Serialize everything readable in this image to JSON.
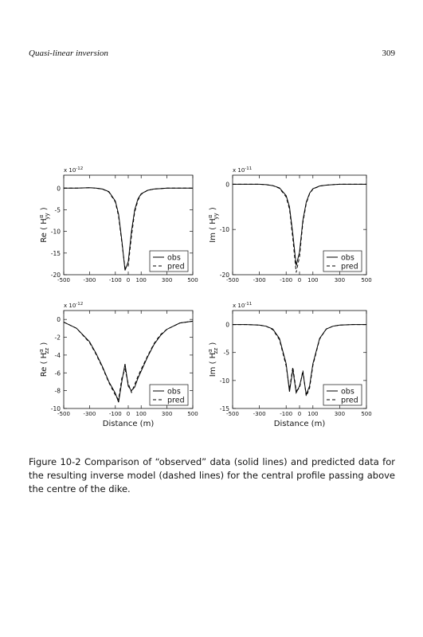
{
  "header": {
    "title": "Quasi-linear inversion",
    "page": "309"
  },
  "chart_data": [
    {
      "type": "line",
      "multiplier": {
        "base": "x 10",
        "exponent": "-12"
      },
      "ylabel": [
        "Re ( H",
        "α",
        "yy",
        " )"
      ],
      "x": [
        -500,
        -400,
        -300,
        -250,
        -200,
        -150,
        -100,
        -75,
        -50,
        -25,
        0,
        25,
        50,
        75,
        100,
        150,
        200,
        250,
        300,
        400,
        500
      ],
      "series": [
        {
          "name": "obs",
          "color": "#000000",
          "dash": false,
          "values": [
            0,
            0,
            0.1,
            0,
            -0.2,
            -0.8,
            -3,
            -6,
            -12,
            -19,
            -17,
            -10,
            -5,
            -2.5,
            -1.3,
            -0.5,
            -0.2,
            -0.1,
            0,
            0,
            0
          ]
        },
        {
          "name": "pred",
          "color": "#000000",
          "dash": true,
          "values": [
            0,
            0,
            0.1,
            0,
            -0.2,
            -0.9,
            -3.2,
            -6.5,
            -12.5,
            -18.5,
            -18,
            -11,
            -5.5,
            -2.8,
            -1.4,
            -0.5,
            -0.2,
            -0.1,
            0,
            0,
            0
          ]
        }
      ],
      "xlim": [
        -500,
        500
      ],
      "xticks": [
        -500,
        -300,
        -100,
        0,
        100,
        300,
        500
      ],
      "ylim": [
        -20,
        3
      ],
      "yticks": [
        0,
        -5,
        -10,
        -15,
        -20
      ],
      "legend": "lower right"
    },
    {
      "type": "line",
      "multiplier": {
        "base": "x 10",
        "exponent": "-11"
      },
      "ylabel": [
        "Im ( H",
        "α",
        "yy",
        " )"
      ],
      "x": [
        -500,
        -400,
        -300,
        -250,
        -200,
        -150,
        -100,
        -75,
        -50,
        -25,
        0,
        25,
        50,
        75,
        100,
        150,
        200,
        250,
        300,
        400,
        500
      ],
      "series": [
        {
          "name": "obs",
          "color": "#000000",
          "dash": false,
          "values": [
            0,
            0,
            0,
            -0.1,
            -0.3,
            -0.8,
            -2.5,
            -5,
            -11,
            -18,
            -15,
            -8,
            -4,
            -2,
            -1,
            -0.4,
            -0.2,
            -0.1,
            0,
            0,
            0
          ]
        },
        {
          "name": "pred",
          "color": "#000000",
          "dash": true,
          "values": [
            0,
            0,
            0,
            -0.1,
            -0.3,
            -0.9,
            -2.8,
            -5.5,
            -12,
            -19.5,
            -16,
            -8.5,
            -4.3,
            -2.1,
            -1.1,
            -0.4,
            -0.2,
            -0.1,
            0,
            0,
            0
          ]
        }
      ],
      "xlim": [
        -500,
        500
      ],
      "xticks": [
        -500,
        -300,
        -100,
        0,
        100,
        300,
        500
      ],
      "ylim": [
        -20,
        2
      ],
      "yticks": [
        0,
        -10,
        -20
      ],
      "legend": "lower right"
    },
    {
      "type": "line",
      "multiplier": {
        "base": "x 10",
        "exponent": "-12"
      },
      "ylabel": [
        "Re ( H",
        "α",
        "zz",
        " )"
      ],
      "xlabel": "Distance (m)",
      "x": [
        -500,
        -400,
        -300,
        -250,
        -200,
        -150,
        -100,
        -75,
        -50,
        -25,
        0,
        25,
        50,
        75,
        100,
        150,
        200,
        250,
        300,
        400,
        500
      ],
      "series": [
        {
          "name": "obs",
          "color": "#000000",
          "dash": false,
          "values": [
            -0.3,
            -1,
            -2.5,
            -3.8,
            -5.3,
            -7,
            -8.3,
            -9.3,
            -7,
            -5,
            -7.5,
            -8,
            -7.6,
            -6.6,
            -5.8,
            -4.2,
            -2.8,
            -1.8,
            -1.1,
            -0.4,
            -0.2
          ]
        },
        {
          "name": "pred",
          "color": "#000000",
          "dash": true,
          "values": [
            -0.3,
            -1,
            -2.6,
            -3.9,
            -5.4,
            -7.1,
            -8.5,
            -9,
            -6.6,
            -5.6,
            -7.2,
            -8.2,
            -7.3,
            -6.4,
            -5.6,
            -4.1,
            -2.7,
            -1.7,
            -1.1,
            -0.4,
            -0.2
          ]
        }
      ],
      "xlim": [
        -500,
        500
      ],
      "xticks": [
        -500,
        -300,
        -100,
        0,
        100,
        300,
        500
      ],
      "ylim": [
        -10,
        1
      ],
      "yticks": [
        0,
        -2,
        -4,
        -6,
        -8,
        -10
      ],
      "legend": "lower right"
    },
    {
      "type": "line",
      "multiplier": {
        "base": "x 10",
        "exponent": "-11"
      },
      "ylabel": [
        "Im ( H",
        "α",
        "zz",
        " )"
      ],
      "xlabel": "Distance (m)",
      "x": [
        -500,
        -400,
        -300,
        -250,
        -200,
        -150,
        -100,
        -75,
        -50,
        -25,
        0,
        25,
        50,
        75,
        100,
        150,
        200,
        250,
        300,
        400,
        500
      ],
      "series": [
        {
          "name": "obs",
          "color": "#000000",
          "dash": false,
          "values": [
            0,
            0,
            -0.1,
            -0.3,
            -0.8,
            -2.5,
            -7,
            -12,
            -8,
            -12.2,
            -11,
            -8.5,
            -12.5,
            -11,
            -7,
            -2.5,
            -0.8,
            -0.3,
            -0.1,
            0,
            0
          ]
        },
        {
          "name": "pred",
          "color": "#000000",
          "dash": true,
          "values": [
            0,
            0,
            -0.1,
            -0.3,
            -0.9,
            -2.7,
            -7.4,
            -11.6,
            -7.6,
            -11.8,
            -11.4,
            -8.2,
            -12.8,
            -11.4,
            -7.3,
            -2.6,
            -0.8,
            -0.3,
            -0.1,
            0,
            0
          ]
        }
      ],
      "xlim": [
        -500,
        500
      ],
      "xticks": [
        -500,
        -300,
        -100,
        0,
        100,
        300,
        500
      ],
      "ylim": [
        -15,
        2.5
      ],
      "yticks": [
        0,
        -5,
        -10,
        -15
      ],
      "legend": "lower right"
    }
  ],
  "caption": "Figure 10-2  Comparison of “observed” data (solid lines) and predicted data for the resulting inverse model (dashed lines) for the central profile passing above the centre of the dike."
}
